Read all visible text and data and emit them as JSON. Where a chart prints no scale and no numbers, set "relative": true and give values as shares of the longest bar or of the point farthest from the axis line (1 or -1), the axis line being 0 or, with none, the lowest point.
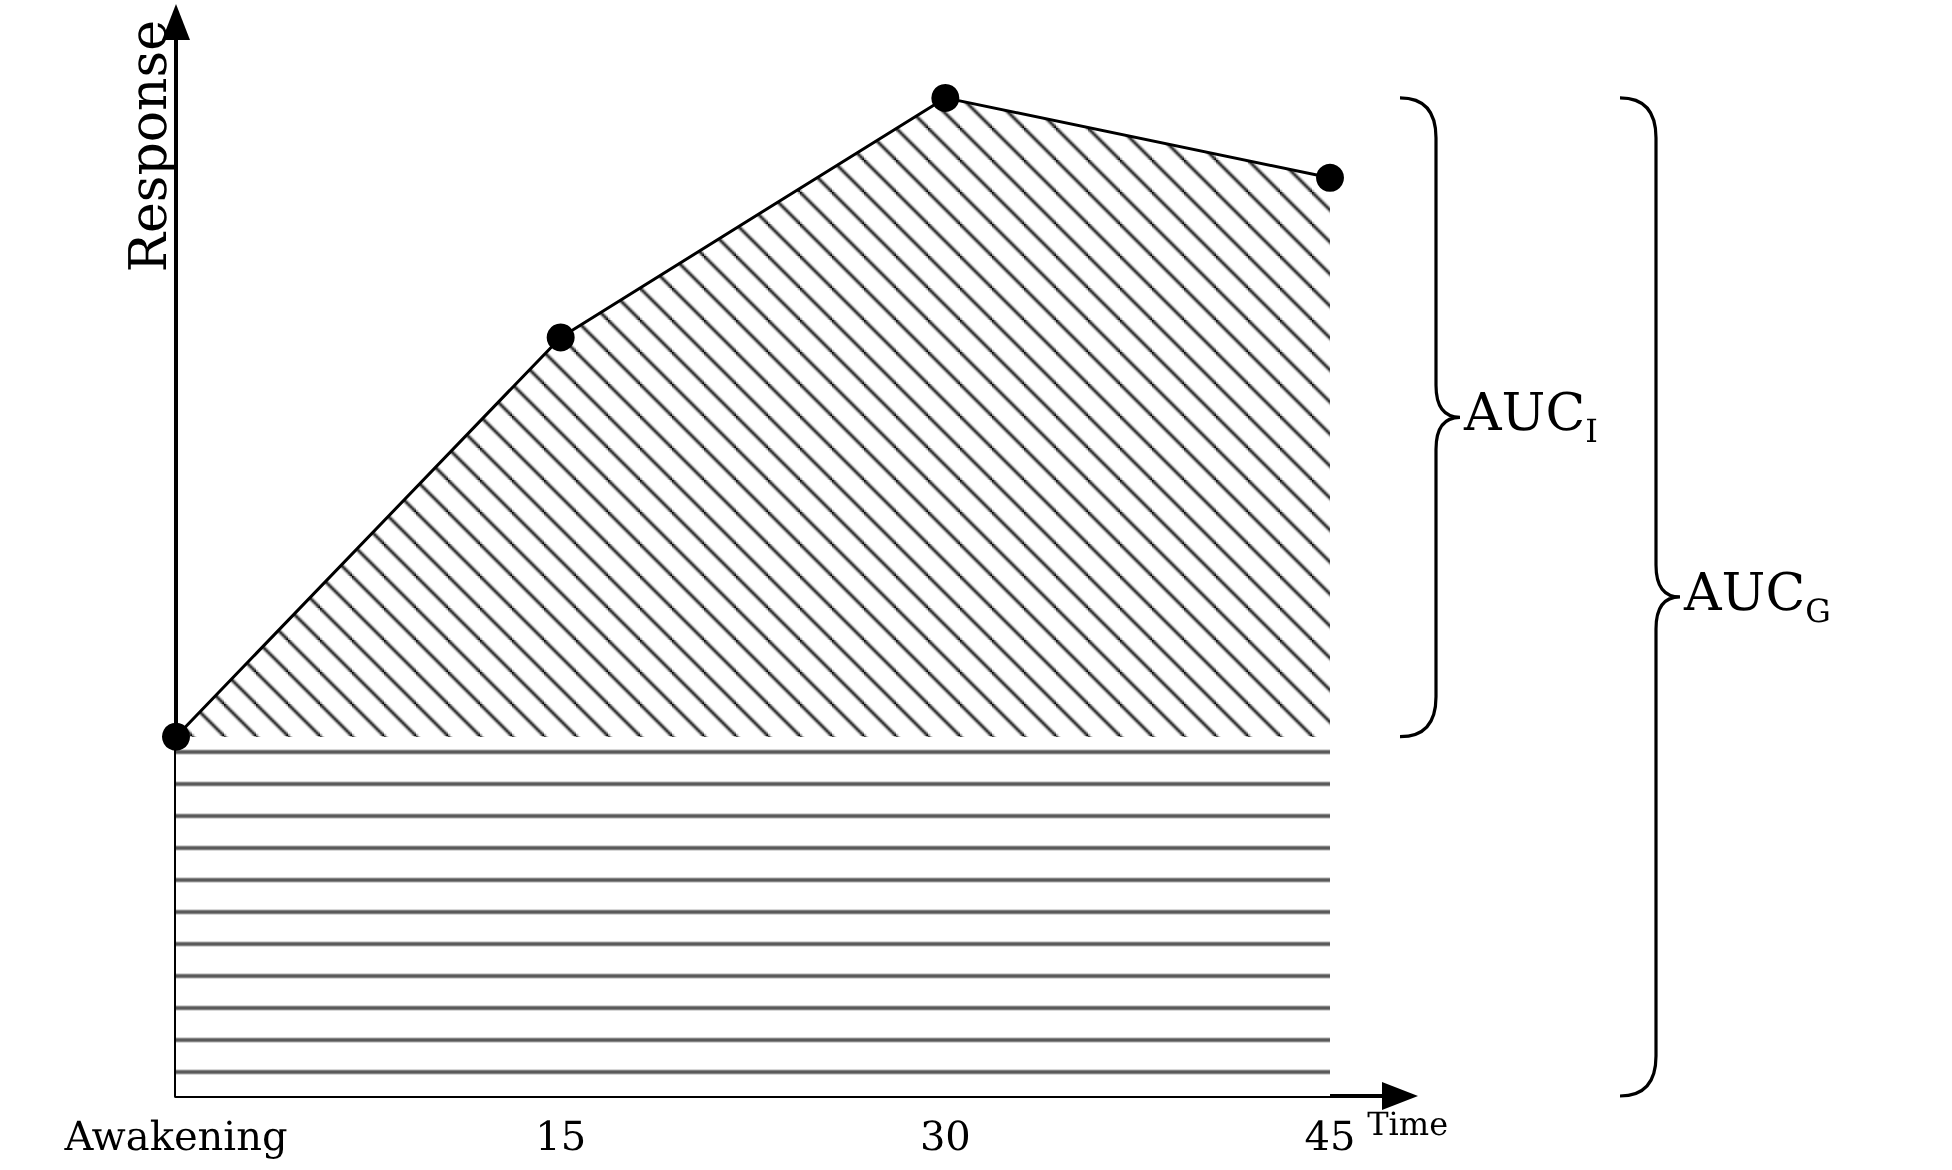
{
  "chart_data": {
    "type": "area",
    "relative": true,
    "xlabel": "Time",
    "ylabel": "Response",
    "categories": [
      "Awakening",
      "15",
      "30",
      "45"
    ],
    "series": [
      {
        "color": "#000000",
        "values": [
          0.36,
          0.76,
          1,
          0.92
        ]
      }
    ],
    "bands": [
      {
        "axis": "y",
        "from": 0,
        "to": 0.36,
        "color": "#000000"
      }
    ],
    "annotations": [
      "AUC$_{I}$",
      "AUC$_{G}$"
    ],
    "marker": "circle",
    "line_style": "solid",
    "grid": false
  }
}
